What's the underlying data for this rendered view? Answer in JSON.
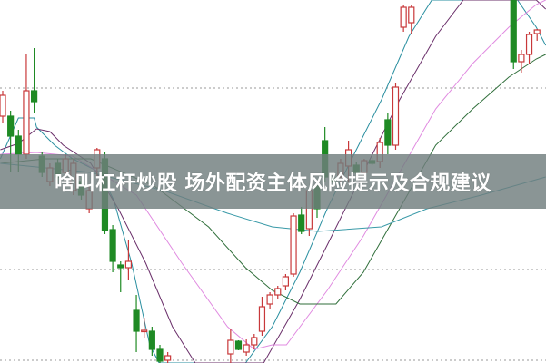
{
  "caption": "啥叫杠杆炒股 场外配资主体风险提示及合规建议",
  "colors": {
    "up": "#c8383a",
    "down": "#1f8a24",
    "grid": "#999999",
    "banner": "#707e7e"
  },
  "chart_data": {
    "type": "candlestick",
    "title": "",
    "xlabel": "",
    "ylabel": "",
    "grid": "dotted horizontal",
    "ylim": [
      0,
      400
    ],
    "candles_fields": [
      "index",
      "open",
      "high",
      "low",
      "close"
    ],
    "candles": [
      [
        0,
        272,
        300,
        265,
        295
      ],
      [
        1,
        272,
        278,
        210,
        250
      ],
      [
        2,
        250,
        257,
        210,
        230
      ],
      [
        3,
        230,
        340,
        225,
        300
      ],
      [
        4,
        300,
        347,
        275,
        288
      ],
      [
        5,
        228,
        232,
        205,
        210
      ],
      [
        6,
        200,
        220,
        195,
        215
      ],
      [
        7,
        220,
        225,
        198,
        205
      ],
      [
        8,
        210,
        230,
        205,
        225
      ],
      [
        9,
        190,
        225,
        185,
        220
      ],
      [
        10,
        200,
        205,
        180,
        185
      ],
      [
        11,
        170,
        195,
        165,
        190
      ],
      [
        12,
        215,
        237,
        205,
        235
      ],
      [
        13,
        225,
        232,
        142,
        146
      ],
      [
        14,
        147,
        152,
        100,
        112
      ],
      [
        15,
        108,
        112,
        78,
        105
      ],
      [
        16,
        105,
        135,
        92,
        112
      ],
      [
        17,
        58,
        75,
        12,
        35
      ],
      [
        18,
        35,
        50,
        28,
        36
      ],
      [
        19,
        35,
        40,
        8,
        15
      ],
      [
        20,
        15,
        20,
        0,
        2
      ],
      [
        21,
        3,
        12,
        0,
        8
      ],
      [
        29,
        10,
        38,
        0,
        25
      ],
      [
        30,
        24,
        25,
        14,
        15
      ],
      [
        31,
        12,
        26,
        8,
        20
      ],
      [
        32,
        20,
        32,
        15,
        28
      ],
      [
        33,
        35,
        73,
        30,
        62
      ],
      [
        34,
        65,
        78,
        60,
        75
      ],
      [
        35,
        75,
        85,
        70,
        82
      ],
      [
        36,
        85,
        98,
        80,
        95
      ],
      [
        37,
        98,
        165,
        95,
        162
      ],
      [
        38,
        163,
        172,
        142,
        145
      ],
      [
        39,
        148,
        192,
        140,
        190
      ],
      [
        40,
        195,
        200,
        160,
        170
      ],
      [
        41,
        245,
        260,
        200,
        205
      ],
      [
        42,
        203,
        206,
        198,
        200
      ],
      [
        43,
        205,
        225,
        195,
        220
      ],
      [
        44,
        217,
        245,
        200,
        235
      ],
      [
        45,
        218,
        222,
        208,
        210
      ],
      [
        46,
        210,
        225,
        205,
        223
      ],
      [
        47,
        223,
        226,
        218,
        220
      ],
      [
        48,
        222,
        248,
        215,
        243
      ],
      [
        49,
        268,
        275,
        230,
        240
      ],
      [
        50,
        240,
        308,
        235,
        304
      ],
      [
        51,
        370,
        395,
        365,
        392
      ],
      [
        52,
        375,
        395,
        362,
        392
      ],
      [
        65,
        400,
        400,
        324,
        332
      ],
      [
        66,
        332,
        345,
        320,
        340
      ],
      [
        67,
        340,
        365,
        330,
        362
      ],
      [
        68,
        363,
        368,
        355,
        367
      ]
    ],
    "moving_averages": [
      {
        "color": "#2a8fa0",
        "points": [
          [
            -0.3,
            225
          ],
          [
            2,
            270
          ],
          [
            4,
            270
          ],
          [
            4.3,
            260
          ],
          [
            6.6,
            240
          ],
          [
            8.9,
            225
          ],
          [
            12.4,
            210
          ],
          [
            14.1,
            180
          ],
          [
            16.4,
            110
          ],
          [
            18.7,
            20
          ],
          [
            19.9,
            0
          ],
          [
            30.9,
            0
          ],
          [
            34.3,
            40
          ],
          [
            37.8,
            100
          ],
          [
            41.3,
            170
          ],
          [
            44.7,
            230
          ],
          [
            48.2,
            290
          ],
          [
            51.7,
            360
          ],
          [
            54.6,
            400
          ],
          [
            65.5,
            400
          ],
          [
            67.9,
            370
          ],
          [
            69.1,
            350
          ]
        ]
      },
      {
        "color": "#6a2f6a",
        "points": [
          [
            -0.3,
            235
          ],
          [
            2,
            242
          ],
          [
            4.3,
            258
          ],
          [
            6,
            255
          ],
          [
            7.7,
            240
          ],
          [
            11.2,
            220
          ],
          [
            14.7,
            170
          ],
          [
            18.2,
            110
          ],
          [
            21.6,
            40
          ],
          [
            24.5,
            0
          ],
          [
            33.2,
            0
          ],
          [
            37.8,
            70
          ],
          [
            41.3,
            130
          ],
          [
            45.9,
            210
          ],
          [
            50.5,
            290
          ],
          [
            55.1,
            360
          ],
          [
            58.6,
            400
          ],
          [
            67.9,
            400
          ],
          [
            69.1,
            390
          ]
        ]
      },
      {
        "color": "#e08ae0",
        "points": [
          [
            -0.3,
            230
          ],
          [
            4.3,
            232
          ],
          [
            8.9,
            228
          ],
          [
            17,
            185
          ],
          [
            22.8,
            110
          ],
          [
            28.6,
            40
          ],
          [
            32,
            15
          ],
          [
            34.3,
            20
          ],
          [
            36.1,
            20
          ],
          [
            41.3,
            80
          ],
          [
            45.9,
            140
          ],
          [
            50.5,
            210
          ],
          [
            55.1,
            280
          ],
          [
            59.8,
            330
          ],
          [
            64.4,
            370
          ],
          [
            67.9,
            395
          ],
          [
            69.1,
            400
          ]
        ]
      },
      {
        "color": "#2f6e3a",
        "points": [
          [
            -0.3,
            220
          ],
          [
            5.4,
            225
          ],
          [
            11.2,
            225
          ],
          [
            19.3,
            195
          ],
          [
            26.2,
            150
          ],
          [
            30.9,
            105
          ],
          [
            34.3,
            80
          ],
          [
            37.8,
            65
          ],
          [
            42.4,
            65
          ],
          [
            45.9,
            100
          ],
          [
            50.5,
            170
          ],
          [
            55.1,
            240
          ],
          [
            59.8,
            280
          ],
          [
            64.4,
            315
          ],
          [
            67.9,
            335
          ],
          [
            69.1,
            340
          ]
        ]
      },
      {
        "color": "#3a9aa8",
        "points": [
          [
            -0.3,
            220
          ],
          [
            11.2,
            210
          ],
          [
            20.5,
            190
          ],
          [
            28.6,
            165
          ],
          [
            34.3,
            150
          ],
          [
            40.1,
            145
          ],
          [
            48.2,
            150
          ],
          [
            54,
            170
          ],
          [
            60.9,
            185
          ],
          [
            69.1,
            205
          ]
        ]
      }
    ]
  }
}
